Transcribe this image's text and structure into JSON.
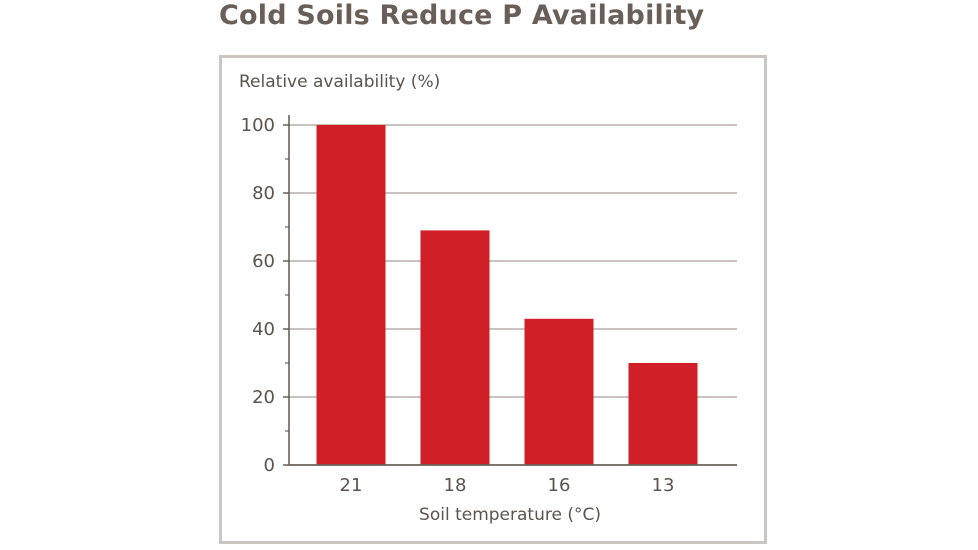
{
  "chart_data": {
    "type": "bar",
    "title": "Cold Soils Reduce P Availability",
    "ylabel": "Relative availability (%)",
    "xlabel": "Soil temperature (°C)",
    "categories": [
      "21",
      "18",
      "16",
      "13"
    ],
    "values": [
      100,
      69,
      43,
      30
    ],
    "ylim": [
      0,
      100
    ],
    "yticks": [
      "0",
      "20",
      "40",
      "60",
      "80",
      "100"
    ],
    "grid": true,
    "bar_color": "#d11f27",
    "grid_color": "#a79f99",
    "axis_color": "#6a605a"
  }
}
